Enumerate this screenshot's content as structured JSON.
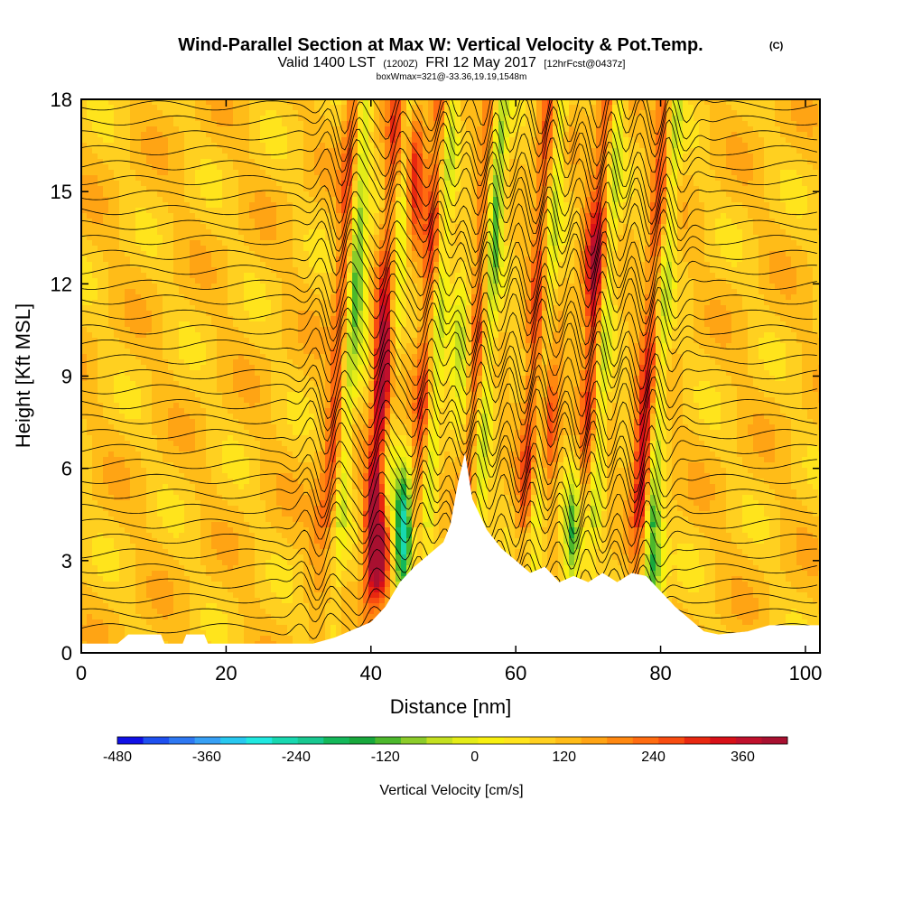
{
  "chart_data": {
    "type": "heatmap",
    "title": "Wind-Parallel Section at Max W: Vertical Velocity & Pot.Temp.",
    "title_mark": "(C)",
    "subtitle": {
      "prefix": "Valid 1400 LST",
      "utc": "(1200Z)",
      "date": "FRI 12 May 2017",
      "forecast": "[12hrFcst@0437z]"
    },
    "info_line": "boxWmax=321@-33.36,19.19,1548m",
    "xlabel": "Distance [nm]",
    "ylabel": "Height [Kft MSL]",
    "xlim": [
      0,
      102
    ],
    "ylim": [
      0,
      18
    ],
    "x_ticks": [
      0,
      20,
      40,
      60,
      80,
      100
    ],
    "y_ticks": [
      0,
      3,
      6,
      9,
      12,
      15,
      18
    ],
    "colorbar": {
      "label": "Vertical Velocity [cm/s]",
      "range": [
        -480,
        420
      ],
      "step": 30,
      "tick_values": [
        -480,
        -360,
        -240,
        -120,
        0,
        120,
        240,
        360
      ],
      "tick_labels": [
        "-480",
        "-360",
        "-240",
        "-120",
        "0",
        "120",
        "240",
        "360"
      ],
      "colors": [
        "#1010e6",
        "#1e50f0",
        "#2e78f2",
        "#37a0f5",
        "#28c8f0",
        "#20e8e0",
        "#18d8b0",
        "#18c890",
        "#14b85a",
        "#18a83c",
        "#4cb82c",
        "#8ccc2a",
        "#c4e020",
        "#e4ec18",
        "#f8f010",
        "#ffe41c",
        "#ffd020",
        "#ffbc18",
        "#ffa414",
        "#ff8810",
        "#ff6c10",
        "#f84c10",
        "#e82810",
        "#d81018",
        "#c0102c",
        "#a81030"
      ]
    },
    "terrain_kft": [
      [
        0,
        0.3
      ],
      [
        5,
        0.3
      ],
      [
        6.5,
        0.6
      ],
      [
        11,
        0.6
      ],
      [
        11.5,
        0.3
      ],
      [
        14,
        0.3
      ],
      [
        14.5,
        0.6
      ],
      [
        17,
        0.6
      ],
      [
        17.5,
        0.3
      ],
      [
        32,
        0.3
      ],
      [
        35,
        0.5
      ],
      [
        38,
        0.8
      ],
      [
        40,
        1.0
      ],
      [
        42,
        1.5
      ],
      [
        44,
        2.3
      ],
      [
        46,
        2.8
      ],
      [
        48,
        3.2
      ],
      [
        50,
        3.6
      ],
      [
        51,
        4.2
      ],
      [
        52,
        5.5
      ],
      [
        53,
        6.5
      ],
      [
        54,
        5.0
      ],
      [
        56,
        4.0
      ],
      [
        58,
        3.4
      ],
      [
        60,
        3.0
      ],
      [
        62,
        2.6
      ],
      [
        64,
        2.8
      ],
      [
        66,
        2.3
      ],
      [
        68,
        2.5
      ],
      [
        70,
        2.3
      ],
      [
        72,
        2.6
      ],
      [
        74,
        2.3
      ],
      [
        76,
        2.6
      ],
      [
        78,
        2.5
      ],
      [
        80,
        2.0
      ],
      [
        82,
        1.5
      ],
      [
        84,
        1.1
      ],
      [
        86,
        0.7
      ],
      [
        88,
        0.6
      ],
      [
        92,
        0.7
      ],
      [
        95,
        0.9
      ],
      [
        102,
        0.9
      ]
    ],
    "updraft_cores": [
      {
        "x": 41,
        "z": 3.5,
        "w": 360
      },
      {
        "x": 42,
        "z": 9.0,
        "w": 240
      },
      {
        "x": 46,
        "z": 15.5,
        "w": 180
      },
      {
        "x": 64.5,
        "z": 8.0,
        "w": 200
      },
      {
        "x": 70.5,
        "z": 12.5,
        "w": 150
      },
      {
        "x": 77.5,
        "z": 6.5,
        "w": 140
      },
      {
        "x": 33,
        "z": 3.5,
        "w": 100
      }
    ],
    "downdraft_cores": [
      {
        "x": 44.5,
        "z": 3.6,
        "w": -360
      },
      {
        "x": 68,
        "z": 3.5,
        "w": -240
      },
      {
        "x": 79,
        "z": 3.0,
        "w": -200
      },
      {
        "x": 38.5,
        "z": 12.0,
        "w": -140
      },
      {
        "x": 52.5,
        "z": 10.0,
        "w": -160
      },
      {
        "x": 57,
        "z": 15.0,
        "w": -140
      },
      {
        "x": 33.5,
        "z": 2.0,
        "w": -120
      }
    ],
    "theta_contours": {
      "count": 36,
      "z_bottom": 0.8,
      "z_top": 17.8,
      "units": "K",
      "wave_centers_nm": [
        35,
        41,
        47,
        54,
        62,
        70,
        78
      ]
    }
  }
}
